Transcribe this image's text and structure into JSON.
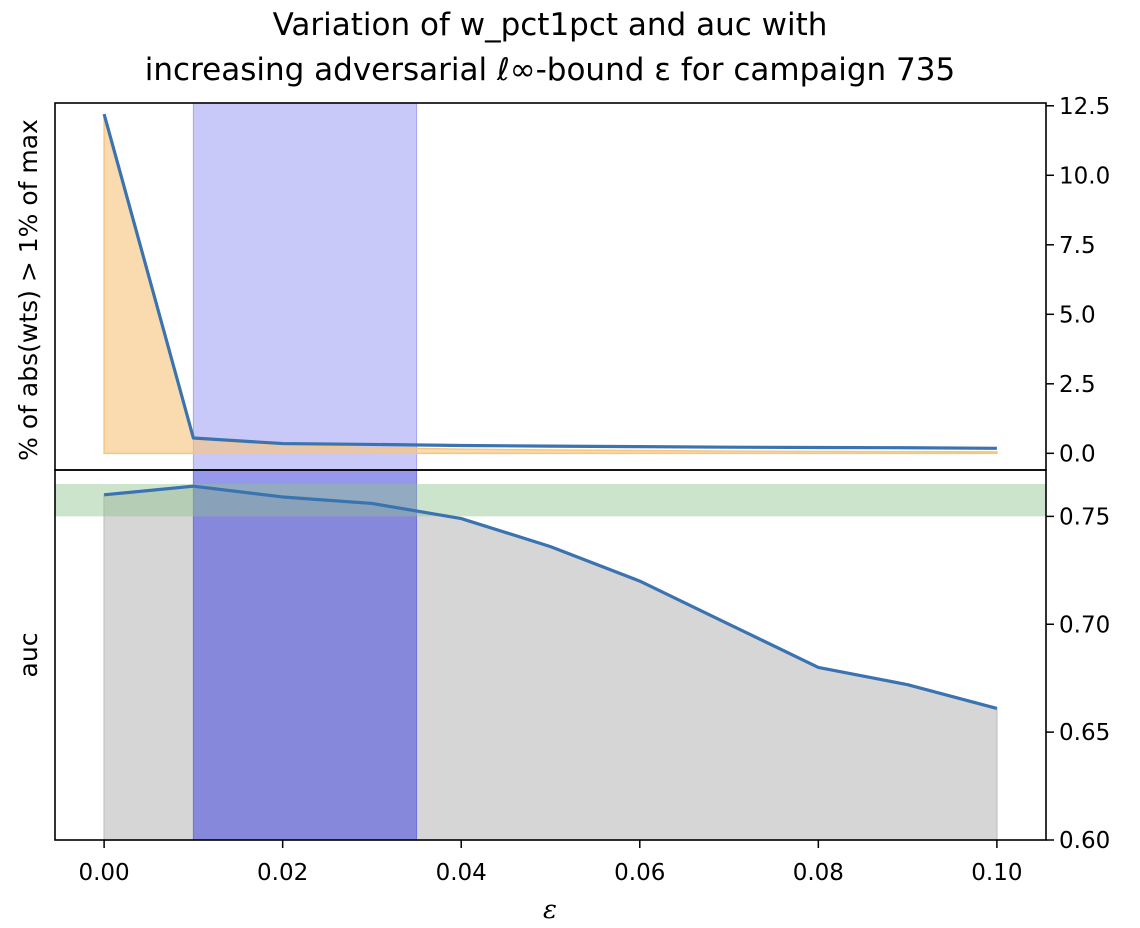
{
  "title_line1": "Variation of w_pct1pct and auc with",
  "title_line2": "increasing adversarial ℓ∞-bound ε for campaign 735",
  "chart_data": [
    {
      "type": "line",
      "panel": "top",
      "xlabel": "ε",
      "ylabel": "% of abs(wts) > 1% of max",
      "xlim": [
        -0.0055,
        0.1055
      ],
      "ylim": [
        -0.6,
        12.6
      ],
      "y_axis_side": "right",
      "grid": false,
      "x": [
        0.0,
        0.01,
        0.02,
        0.03,
        0.04,
        0.05,
        0.06,
        0.07,
        0.08,
        0.09,
        0.1
      ],
      "yticks": [
        "0.0",
        "2.5",
        "5.0",
        "7.5",
        "10.0",
        "12.5"
      ],
      "series": [
        {
          "values": [
            12.2,
            0.55,
            0.35,
            0.32,
            0.28,
            0.26,
            0.24,
            0.22,
            0.21,
            0.2,
            0.18
          ],
          "color": "#3a73b0",
          "style": "line"
        },
        {
          "values": [
            12.2,
            0.5,
            0.3,
            0.2,
            0.15,
            0.12,
            0.1,
            0.08,
            0.07,
            0.06,
            0.05
          ],
          "color": "#f7c580",
          "style": "area"
        }
      ],
      "highlight_band_x": {
        "from": 0.01,
        "to": 0.035,
        "color": "#7b7cf0"
      }
    },
    {
      "type": "area",
      "panel": "bottom",
      "xlabel": "ε",
      "ylabel": "auc",
      "xlim": [
        -0.0055,
        0.1055
      ],
      "ylim": [
        0.6,
        0.7715
      ],
      "y_axis_side": "right",
      "grid": false,
      "x": [
        0.0,
        0.01,
        0.02,
        0.03,
        0.04,
        0.05,
        0.06,
        0.07,
        0.08,
        0.09,
        0.1
      ],
      "xticks": [
        "0.00",
        "0.02",
        "0.04",
        "0.06",
        "0.08",
        "0.10"
      ],
      "yticks": [
        "0.60",
        "0.65",
        "0.70",
        "0.75"
      ],
      "series": [
        {
          "values": [
            0.76,
            0.764,
            0.759,
            0.756,
            0.749,
            0.736,
            0.72,
            0.7,
            0.68,
            0.672,
            0.661
          ],
          "color": "#3a73b0",
          "fill": "#d6d6d6"
        }
      ],
      "highlight_band_x": {
        "from": 0.01,
        "to": 0.035,
        "color": "#5558e0"
      },
      "highlight_band_y": {
        "from": 0.75,
        "to": 0.765,
        "color": "#8ec48e"
      }
    }
  ]
}
